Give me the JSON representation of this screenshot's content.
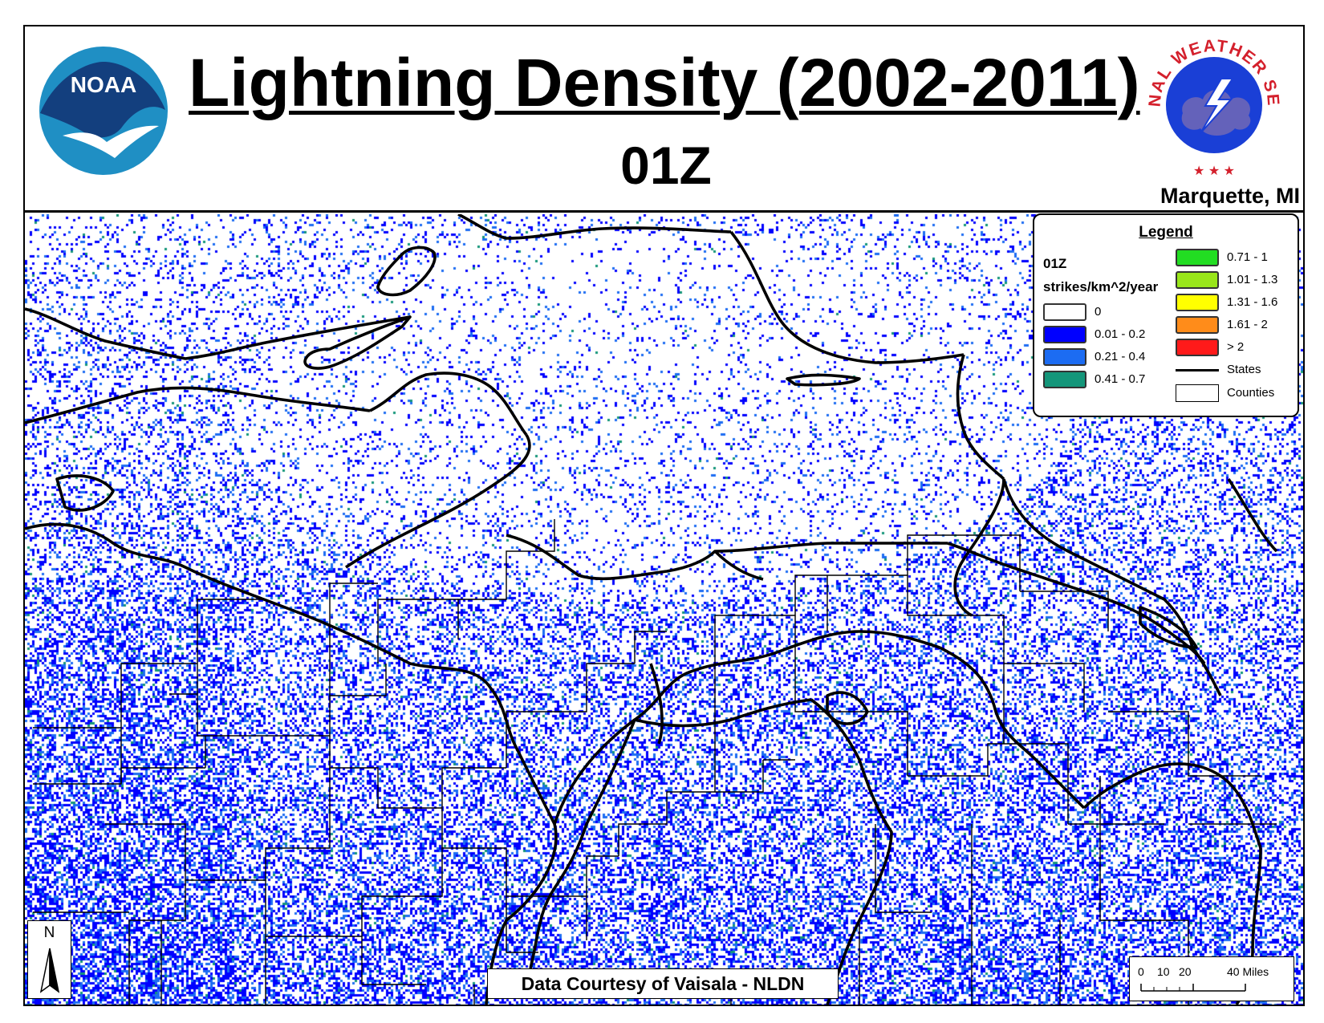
{
  "header": {
    "title": "Lightning Density (2002-2011)",
    "subtitle": "01Z",
    "office": "Marquette, MI",
    "noaa_logo_text": "NOAA",
    "nws_logo_text": "NATIONAL WEATHER SERVICE"
  },
  "legend": {
    "title": "Legend",
    "time_label": "01Z",
    "units": "strikes/km^2/year",
    "classes": [
      {
        "label": "0",
        "color": "#ffffff"
      },
      {
        "label": "0.01 - 0.2",
        "color": "#0000ff"
      },
      {
        "label": "0.21 - 0.4",
        "color": "#1c6cf2"
      },
      {
        "label": "0.41 - 0.7",
        "color": "#14967a"
      },
      {
        "label": "0.71 - 1",
        "color": "#22dd22"
      },
      {
        "label": "1.01 - 1.3",
        "color": "#99e61a"
      },
      {
        "label": "1.31 - 1.6",
        "color": "#ffff00"
      },
      {
        "label": "1.61 - 2",
        "color": "#ff8c1a"
      },
      {
        "label": "> 2",
        "color": "#ff1a1a"
      }
    ],
    "states_label": "States",
    "counties_label": "Counties"
  },
  "credit": "Data Courtesy of Vaisala - NLDN",
  "north_arrow": "N",
  "scale_bar": {
    "labels": [
      "0",
      "10",
      "20",
      "40 Miles"
    ]
  },
  "colors": {
    "border": "#000000",
    "density_low": "#0000ff",
    "density_mid": "#1c6cf2",
    "density_high": "#14967a"
  }
}
